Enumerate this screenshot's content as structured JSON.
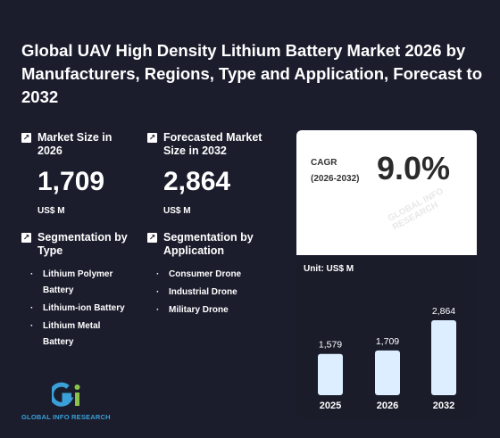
{
  "title": "Global UAV High Density Lithium Battery Market 2026 by Manufacturers, Regions, Type and Application, Forecast to 2032",
  "metrics": {
    "current": {
      "label": "Market Size in 2026",
      "value": "1,709",
      "unit": "US$ M"
    },
    "forecast": {
      "label": "Forecasted Market Size in 2032",
      "value": "2,864",
      "unit": "US$ M"
    }
  },
  "segments": {
    "type": {
      "label": "Segmentation by Type",
      "items": [
        "Lithium Polymer Battery",
        "Lithium-ion Battery",
        "Lithium Metal Battery"
      ]
    },
    "application": {
      "label": "Segmentation by Application",
      "items": [
        "Consumer Drone",
        "Industrial Drone",
        "Military Drone"
      ]
    }
  },
  "cagr": {
    "label": "CAGR",
    "period": "(2026-2032)",
    "value": "9.0%"
  },
  "logo": {
    "text": "GLOBAL INFO RESEARCH"
  },
  "watermark": "GLOBAL INFO RESEARCH",
  "colors": {
    "background": "#1b1d2d",
    "bar": "#dceeff",
    "logo_blue": "#3aa0d8",
    "logo_green": "#8bc34a"
  },
  "chart_data": {
    "type": "bar",
    "unit_label": "Unit: US$ M",
    "categories": [
      "2025",
      "2026",
      "2032"
    ],
    "values": [
      1579,
      1709,
      2864
    ],
    "value_labels": [
      "1,579",
      "1,709",
      "2,864"
    ],
    "ylim": [
      0,
      2864
    ]
  }
}
